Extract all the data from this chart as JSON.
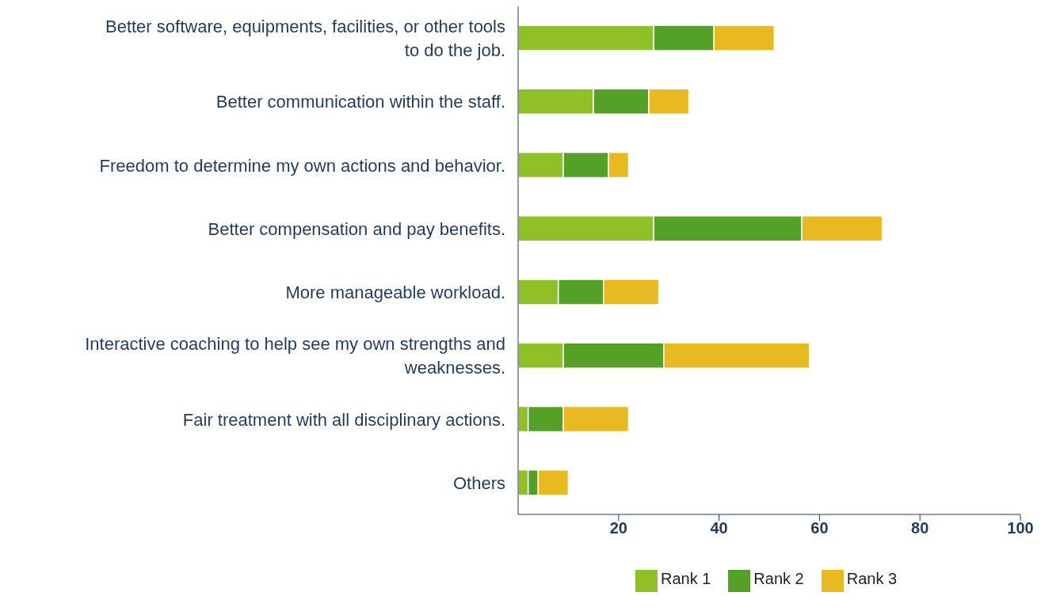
{
  "chart_data": {
    "type": "bar",
    "orientation": "horizontal",
    "stacked": true,
    "categories": [
      "Better software, equipments, facilities, or other tools to do the job.",
      "Better communication within the staff.",
      "Freedom to determine my own actions and behavior.",
      "Better compensation and pay benefits.",
      "More manageable workload.",
      "Interactive coaching to help see my own strengths and weaknesses.",
      "Fair treatment with all disciplinary actions.",
      "Others"
    ],
    "series": [
      {
        "name": "Rank 1",
        "color": "#8fc126",
        "values": [
          27,
          15,
          9,
          27,
          8,
          9,
          2,
          2
        ]
      },
      {
        "name": "Rank 2",
        "color": "#55a127",
        "values": [
          12,
          11,
          9,
          29.5,
          9,
          20,
          7,
          2
        ]
      },
      {
        "name": "Rank 3",
        "color": "#e8b920",
        "values": [
          12,
          8,
          4,
          16,
          11,
          29,
          13,
          6
        ]
      }
    ],
    "xlim": [
      0,
      100
    ],
    "xticks": [
      20,
      40,
      60,
      80,
      100
    ],
    "grid": false,
    "legend": "bottom"
  }
}
